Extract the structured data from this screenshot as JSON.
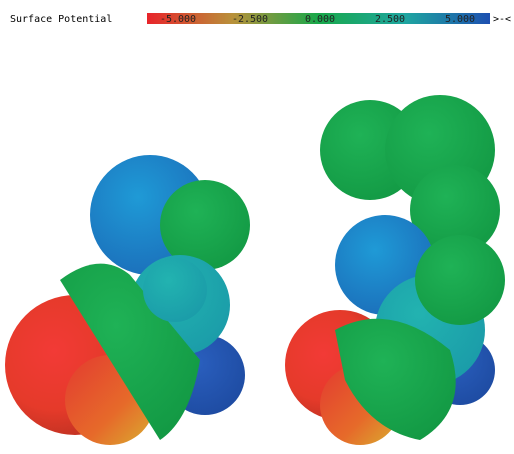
{
  "legend": {
    "title": "Surface Potential",
    "labels": [
      "-5.000",
      "-2.500",
      "0.000",
      "2.500",
      "5.000"
    ],
    "end_symbol": ">-<"
  }
}
